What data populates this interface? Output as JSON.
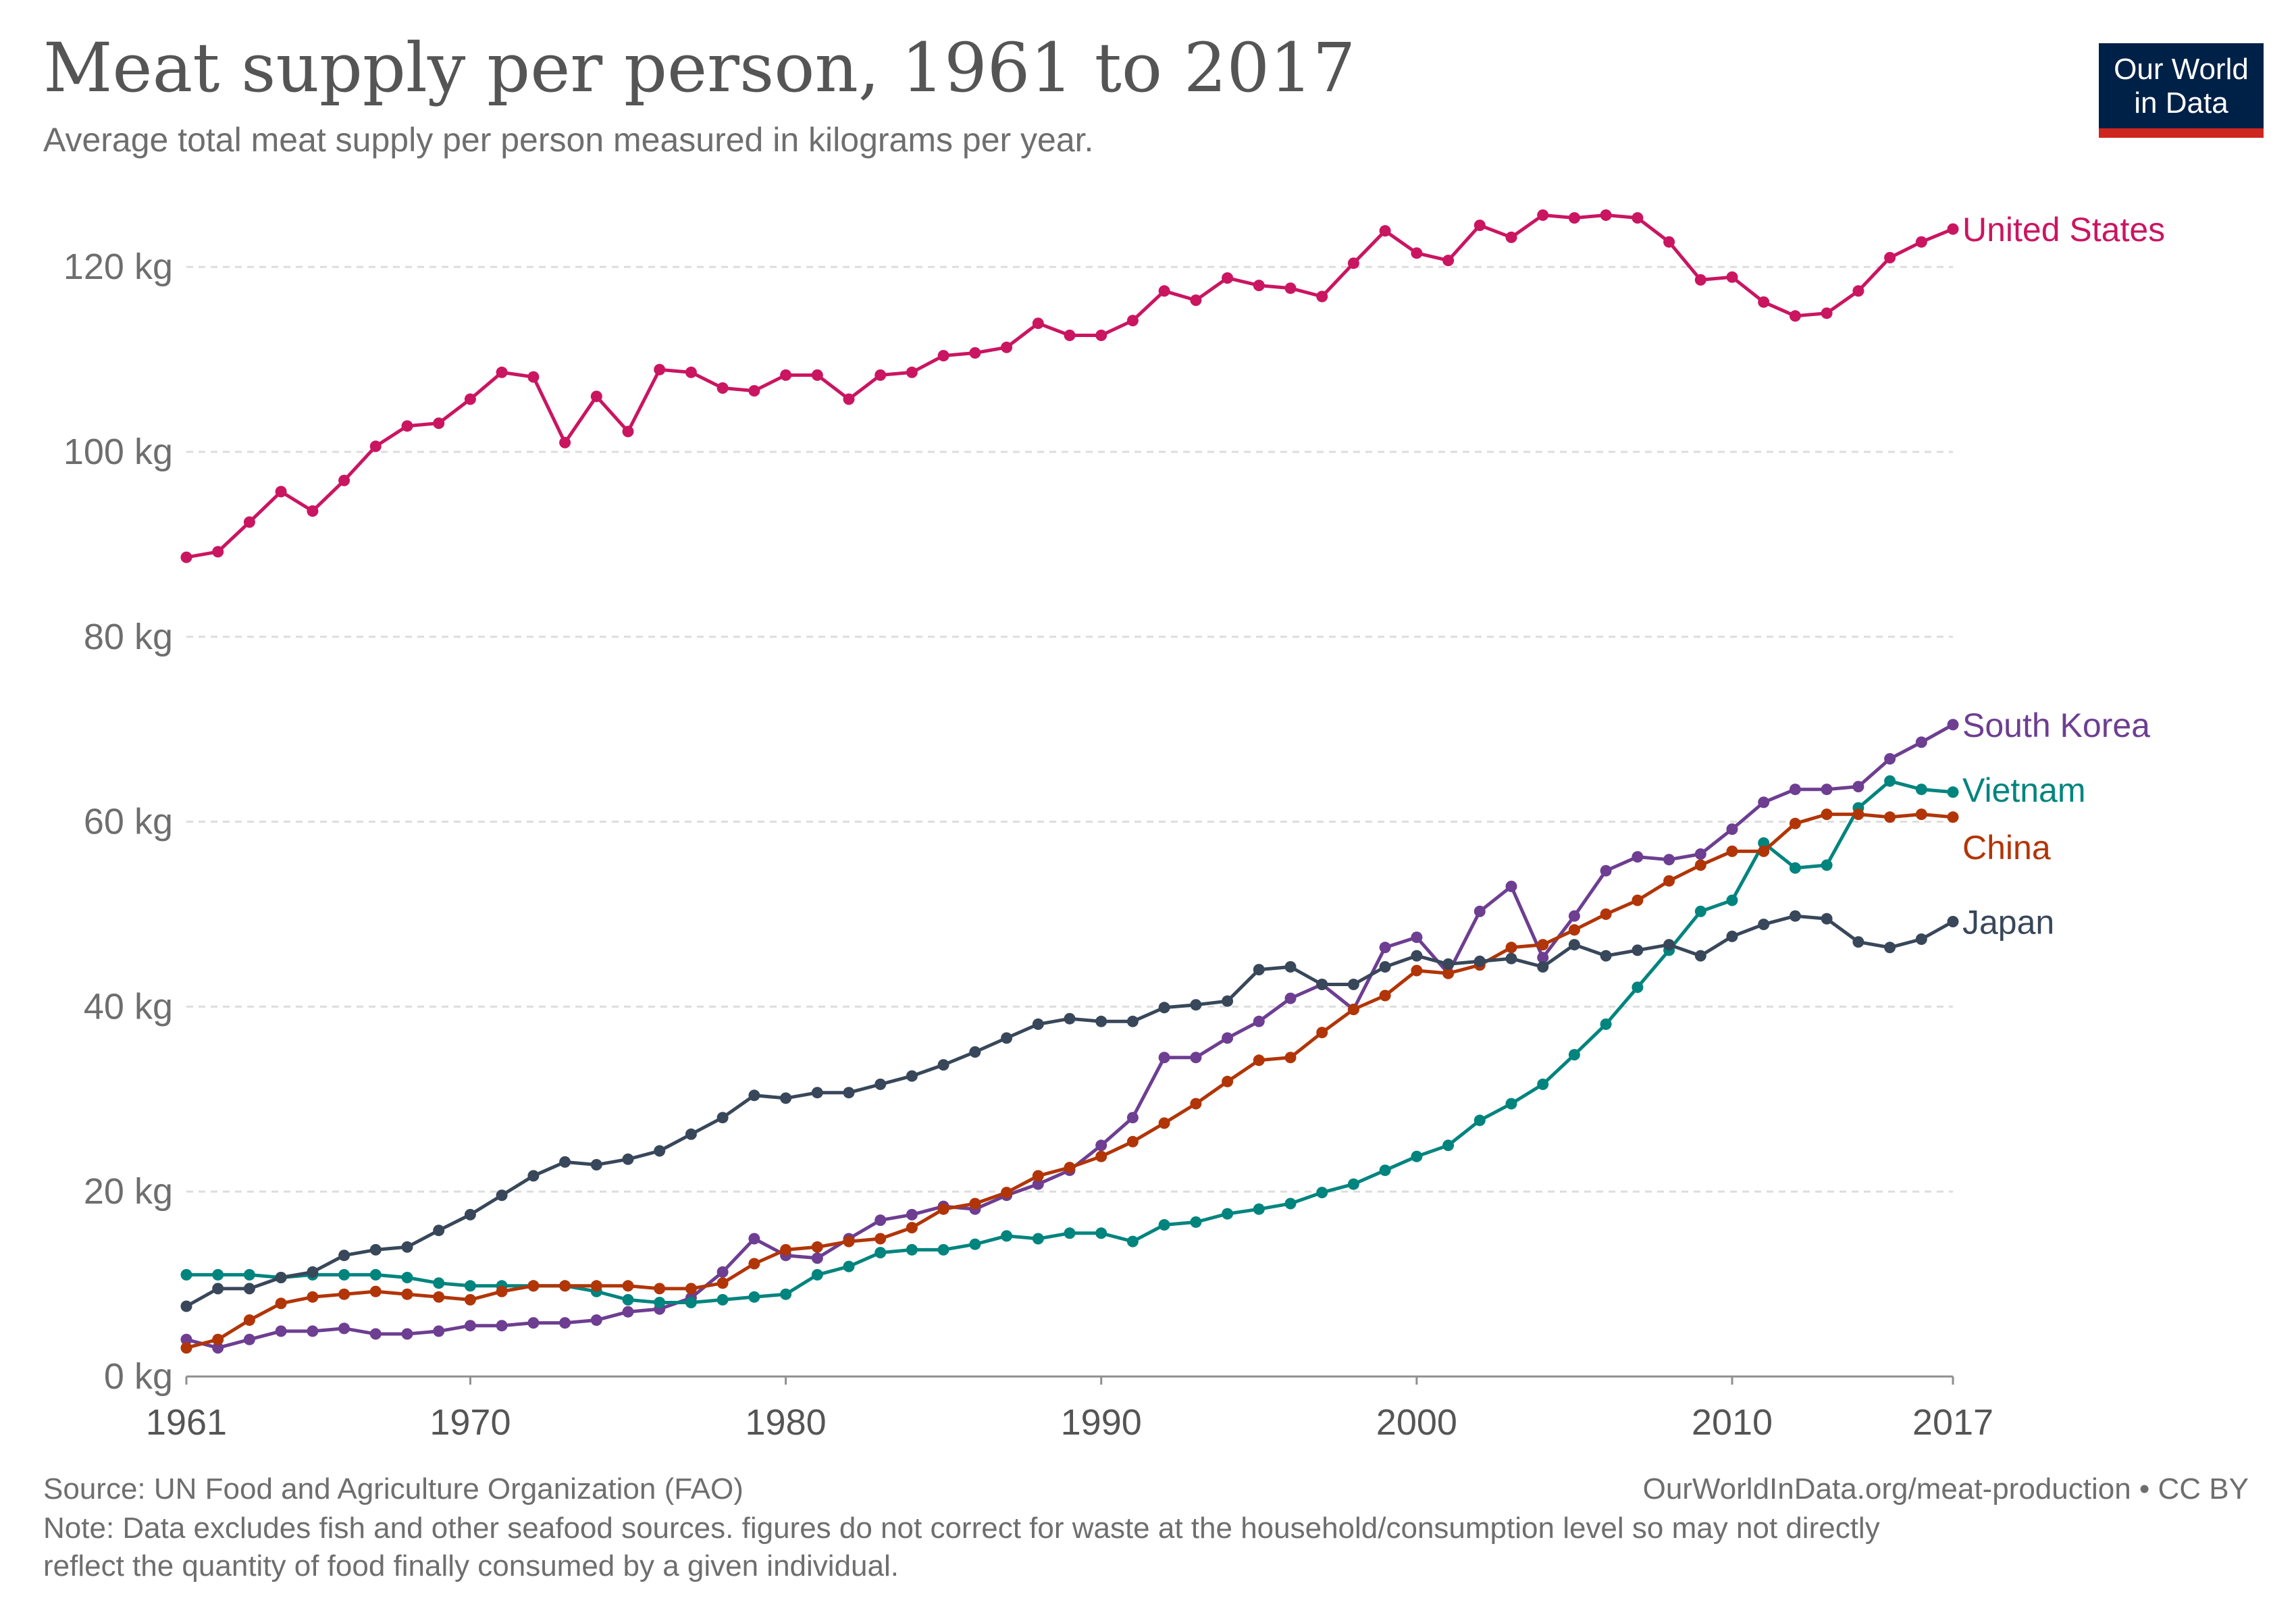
{
  "header": {
    "title": "Meat supply per person, 1961 to 2017",
    "subtitle": "Average total meat supply per person measured in kilograms per year."
  },
  "logo": {
    "line1": "Our World",
    "line2": "in Data",
    "bg_color": "#002147",
    "accent_color": "#ce261e"
  },
  "footer": {
    "source": "Source: UN Food and Agriculture Organization (FAO)",
    "url": "OurWorldInData.org/meat-production • CC BY",
    "note_line1": "Note: Data excludes fish and other seafood sources. figures do not correct for waste at the household/consumption level so may not directly",
    "note_line2": "reflect the quantity of food finally consumed by a given individual."
  },
  "chart_data": {
    "type": "line",
    "title": "Meat supply per person, 1961 to 2017",
    "xlabel": "",
    "ylabel": "",
    "xlim": [
      1961,
      2017
    ],
    "ylim": [
      0,
      130
    ],
    "x_ticks": [
      "1961",
      "1970",
      "1980",
      "1990",
      "2000",
      "2010",
      "2017"
    ],
    "x_tick_values": [
      1961,
      1970,
      1980,
      1990,
      2000,
      2010,
      2017
    ],
    "y_ticks": [
      "0 kg",
      "20 kg",
      "40 kg",
      "60 kg",
      "80 kg",
      "100 kg",
      "120 kg"
    ],
    "y_tick_values": [
      0,
      20,
      40,
      60,
      80,
      100,
      120
    ],
    "grid": "horizontal dashed",
    "legend": "end-of-line labels",
    "x": [
      1961,
      1962,
      1963,
      1964,
      1965,
      1966,
      1967,
      1968,
      1969,
      1970,
      1971,
      1972,
      1973,
      1974,
      1975,
      1976,
      1977,
      1978,
      1979,
      1980,
      1981,
      1982,
      1983,
      1984,
      1985,
      1986,
      1987,
      1988,
      1989,
      1990,
      1991,
      1992,
      1993,
      1994,
      1995,
      1996,
      1997,
      1998,
      1999,
      2000,
      2001,
      2002,
      2003,
      2004,
      2005,
      2006,
      2007,
      2008,
      2009,
      2010,
      2011,
      2012,
      2013,
      2014,
      2015,
      2016,
      2017
    ],
    "series": [
      {
        "name": "United States",
        "color": "#ca1561",
        "values": [
          88.6,
          89.2,
          92.4,
          95.7,
          93.6,
          96.9,
          100.6,
          102.8,
          103.1,
          105.7,
          108.6,
          108.1,
          101.0,
          106.0,
          102.2,
          108.9,
          108.6,
          106.9,
          106.6,
          108.3,
          108.3,
          105.7,
          108.3,
          108.6,
          110.4,
          110.7,
          111.3,
          113.9,
          112.6,
          112.6,
          114.2,
          117.4,
          116.4,
          118.8,
          118.0,
          117.7,
          116.8,
          120.4,
          123.9,
          121.5,
          120.7,
          124.5,
          123.2,
          125.6,
          125.3,
          125.6,
          125.3,
          122.7,
          118.6,
          118.9,
          116.2,
          114.7,
          115.0,
          117.4,
          121.0,
          122.7,
          124.1
        ]
      },
      {
        "name": "South Korea",
        "color": "#6d3e91",
        "values": [
          4.0,
          3.1,
          4.0,
          4.9,
          4.9,
          5.2,
          4.6,
          4.6,
          4.9,
          5.5,
          5.5,
          5.8,
          5.8,
          6.1,
          7.0,
          7.3,
          8.5,
          11.3,
          14.9,
          13.1,
          12.8,
          14.9,
          16.9,
          17.5,
          18.4,
          18.1,
          19.6,
          20.8,
          22.3,
          25.0,
          28.0,
          34.5,
          34.5,
          36.6,
          38.4,
          40.9,
          42.4,
          39.7,
          46.4,
          47.5,
          43.6,
          50.3,
          53.0,
          45.3,
          49.8,
          54.7,
          56.2,
          55.9,
          56.5,
          59.2,
          62.1,
          63.5,
          63.5,
          63.8,
          66.8,
          68.6,
          70.5
        ]
      },
      {
        "name": "Vietnam",
        "color": "#00847e",
        "values": [
          11.0,
          11.0,
          11.0,
          10.7,
          11.0,
          11.0,
          11.0,
          10.7,
          10.1,
          9.8,
          9.8,
          9.8,
          9.8,
          9.2,
          8.3,
          8.0,
          8.0,
          8.3,
          8.6,
          8.9,
          11.0,
          11.9,
          13.4,
          13.7,
          13.7,
          14.3,
          15.2,
          14.9,
          15.5,
          15.5,
          14.6,
          16.4,
          16.7,
          17.6,
          18.1,
          18.7,
          19.9,
          20.8,
          22.3,
          23.8,
          25.0,
          27.7,
          29.5,
          31.6,
          34.8,
          38.1,
          42.1,
          46.1,
          50.3,
          51.5,
          57.7,
          55.0,
          55.3,
          61.5,
          64.4,
          63.5,
          63.2
        ]
      },
      {
        "name": "China",
        "color": "#b13507",
        "values": [
          3.1,
          4.0,
          6.1,
          7.9,
          8.6,
          8.9,
          9.2,
          8.9,
          8.6,
          8.3,
          9.2,
          9.8,
          9.8,
          9.8,
          9.8,
          9.5,
          9.5,
          10.1,
          12.2,
          13.7,
          14.0,
          14.6,
          14.9,
          16.1,
          18.1,
          18.7,
          19.9,
          21.7,
          22.6,
          23.8,
          25.4,
          27.4,
          29.5,
          31.9,
          34.2,
          34.5,
          37.2,
          39.7,
          41.2,
          43.9,
          43.6,
          44.5,
          46.4,
          46.7,
          48.3,
          50.0,
          51.5,
          53.6,
          55.3,
          56.8,
          56.8,
          59.8,
          60.8,
          60.8,
          60.5,
          60.8,
          60.5
        ]
      },
      {
        "name": "Japan",
        "color": "#38475a",
        "values": [
          7.6,
          9.5,
          9.5,
          10.7,
          11.3,
          13.1,
          13.7,
          14.0,
          15.8,
          17.5,
          19.6,
          21.7,
          23.2,
          22.9,
          23.5,
          24.4,
          26.2,
          28.0,
          30.4,
          30.1,
          30.7,
          30.7,
          31.6,
          32.5,
          33.7,
          35.1,
          36.6,
          38.1,
          38.7,
          38.4,
          38.4,
          39.9,
          40.2,
          40.6,
          44.0,
          44.3,
          42.4,
          42.4,
          44.3,
          45.5,
          44.6,
          44.9,
          45.2,
          44.3,
          46.7,
          45.5,
          46.1,
          46.7,
          45.5,
          47.6,
          48.9,
          49.8,
          49.5,
          47.0,
          46.4,
          47.3,
          49.2
        ]
      }
    ]
  }
}
